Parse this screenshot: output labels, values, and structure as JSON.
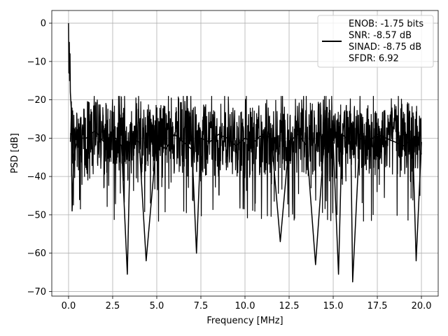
{
  "chart_data": {
    "type": "line",
    "title": "",
    "xlabel": "Frequency [MHz]",
    "ylabel": "PSD [dB]",
    "xlim": [
      -0.95,
      20.95
    ],
    "ylim": [
      -71.2,
      3.3
    ],
    "xticks": [
      0.0,
      2.5,
      5.0,
      7.5,
      10.0,
      12.5,
      15.0,
      17.5,
      20.0
    ],
    "xtick_labels": [
      "0.0",
      "2.5",
      "5.0",
      "7.5",
      "10.0",
      "12.5",
      "15.0",
      "17.5",
      "20.0"
    ],
    "yticks": [
      0,
      -10,
      -20,
      -30,
      -40,
      -50,
      -60,
      -70
    ],
    "ytick_labels": [
      "0",
      "−10",
      "−20",
      "−30",
      "−40",
      "−50",
      "−60",
      "−70"
    ],
    "grid": true,
    "legend_position": "top-right",
    "series": [
      {
        "name": "ENOB: -1.75 bits",
        "color": "#000000",
        "x": [
          0.0,
          0.02,
          0.04,
          0.06,
          0.08,
          0.1,
          0.15,
          0.2,
          0.3,
          0.5,
          1.0,
          1.5,
          2.0,
          2.5,
          3.0,
          3.33,
          3.5,
          4.0,
          4.4,
          5.0,
          5.5,
          6.0,
          6.5,
          7.0,
          7.25,
          7.5,
          8.0,
          8.5,
          9.0,
          9.5,
          10.0,
          10.5,
          11.0,
          11.5,
          12.0,
          12.5,
          13.0,
          13.5,
          14.0,
          14.5,
          15.0,
          15.3,
          15.5,
          16.0,
          16.1,
          16.5,
          17.0,
          17.5,
          18.0,
          18.5,
          19.0,
          19.5,
          19.7,
          20.0
        ],
        "y": [
          0.0,
          -13.0,
          -5.0,
          -15.0,
          -8.0,
          -18.0,
          -22.0,
          -49.0,
          -35.0,
          -30.0,
          -30.0,
          -28.0,
          -31.0,
          -29.0,
          -32.0,
          -65.5,
          -30.0,
          -31.0,
          -62.0,
          -30.0,
          -33.0,
          -29.0,
          -31.0,
          -33.0,
          -60.0,
          -30.0,
          -31.0,
          -29.0,
          -30.0,
          -32.0,
          -30.0,
          -31.0,
          -29.0,
          -30.0,
          -57.0,
          -31.0,
          -29.0,
          -32.0,
          -63.0,
          -30.0,
          -31.0,
          -65.5,
          -29.0,
          -31.0,
          -67.5,
          -30.0,
          -31.0,
          -29.0,
          -30.0,
          -31.0,
          -32.0,
          -30.0,
          -62.0,
          -31.0
        ]
      }
    ],
    "legend_lines": [
      "ENOB: -1.75 bits",
      "SNR: -8.57 dB",
      "SINAD: -8.75 dB",
      "SFDR: 6.92"
    ]
  }
}
